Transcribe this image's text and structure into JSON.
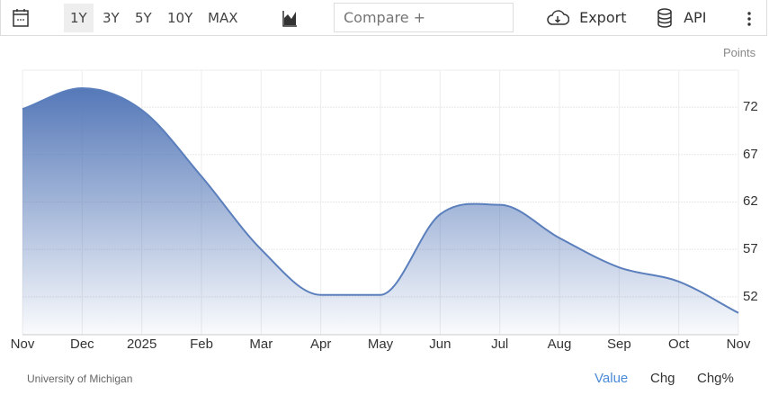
{
  "toolbar": {
    "calendar_icon": "calendar-icon",
    "ranges": [
      "1Y",
      "3Y",
      "5Y",
      "10Y",
      "MAX"
    ],
    "active_range": "1Y",
    "chart_type_icon": "area-chart-icon",
    "compare_placeholder": "Compare +",
    "export_label": "Export",
    "api_label": "API",
    "more_icon": "more-vertical-icon"
  },
  "footer": {
    "source": "University of Michigan",
    "tabs": [
      "Value",
      "Chg",
      "Chg%"
    ],
    "active_tab": "Value"
  },
  "colors": {
    "line": "#5b7fbc",
    "fill_top": "#5578b8",
    "active_tab": "#4a8ad8"
  },
  "chart_data": {
    "type": "area",
    "unit_label": "Points",
    "x": [
      "Nov",
      "Dec",
      "2025",
      "Feb",
      "Mar",
      "Apr",
      "May",
      "Jun",
      "Jul",
      "Aug",
      "Sep",
      "Oct",
      "Nov"
    ],
    "values": [
      71.8,
      74.0,
      71.7,
      64.7,
      57.0,
      52.2,
      52.2,
      60.7,
      61.7,
      58.2,
      55.1,
      53.6,
      50.3
    ],
    "yticks": [
      52,
      57,
      62,
      67,
      72
    ],
    "ylim": [
      48,
      75.9
    ],
    "grid": true,
    "axis_side": "right"
  }
}
